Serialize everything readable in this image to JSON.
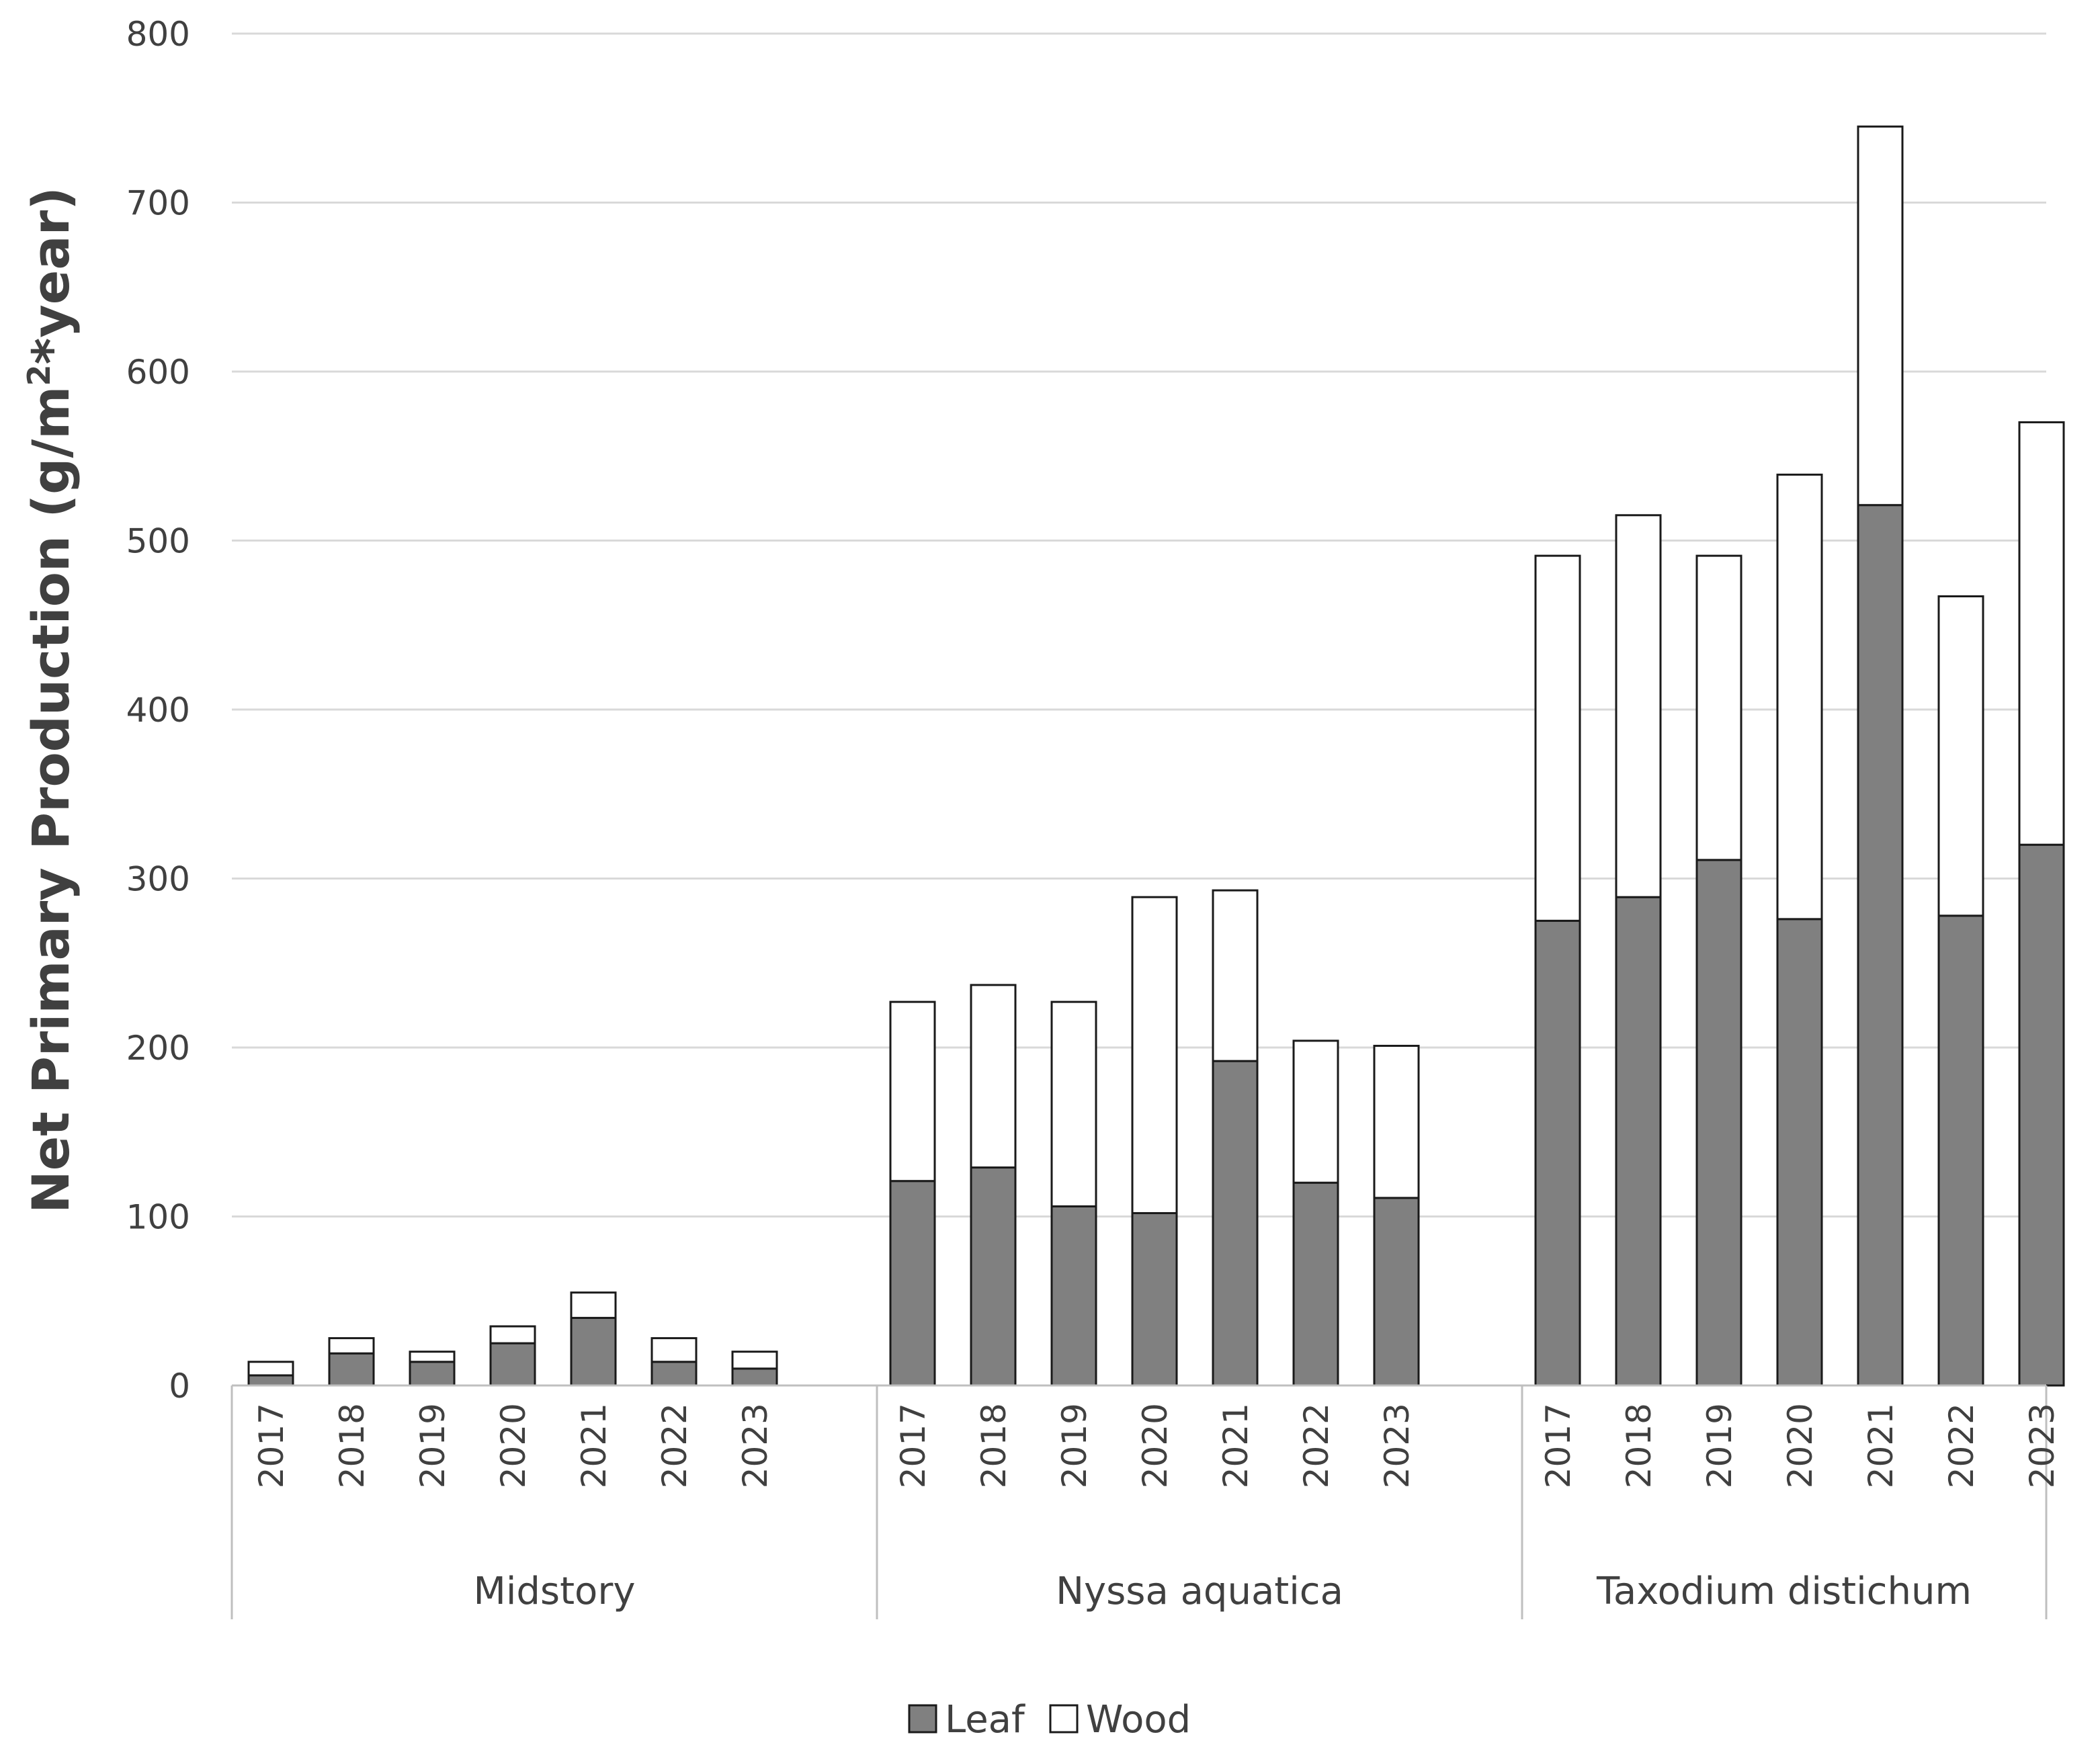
{
  "chart_data": {
    "type": "bar",
    "stacked": true,
    "title": "",
    "ylabel": "Net Primary Production (g/m2*year)",
    "ylabel_main": "Net Primary Production (g/m",
    "ylabel_sup": "2",
    "ylabel_tail": "*year)",
    "ylim": [
      0,
      800
    ],
    "yticks": [
      0,
      100,
      200,
      300,
      400,
      500,
      600,
      700,
      800
    ],
    "grid": true,
    "legend_position": "bottom-center",
    "groups": [
      {
        "name": "Midstory",
        "categories": [
          "2017",
          "2018",
          "2019",
          "2020",
          "2021",
          "2022",
          "2023"
        ],
        "series": [
          {
            "name": "Leaf",
            "values": [
              6,
              19,
              14,
              25,
              40,
              14,
              10
            ]
          },
          {
            "name": "Wood",
            "values": [
              8,
              9,
              6,
              10,
              15,
              14,
              10
            ]
          }
        ]
      },
      {
        "name": "Nyssa aquatica",
        "categories": [
          "2017",
          "2018",
          "2019",
          "2020",
          "2021",
          "2022",
          "2023"
        ],
        "series": [
          {
            "name": "Leaf",
            "values": [
              121,
              129,
              106,
              102,
              192,
              120,
              111
            ]
          },
          {
            "name": "Wood",
            "values": [
              106,
              108,
              121,
              187,
              101,
              84,
              90
            ]
          }
        ]
      },
      {
        "name": "Taxodium distichum",
        "categories": [
          "2017",
          "2018",
          "2019",
          "2020",
          "2021",
          "2022",
          "2023"
        ],
        "series": [
          {
            "name": "Leaf",
            "values": [
              275,
              289,
              311,
              276,
              521,
              278,
              320
            ]
          },
          {
            "name": "Wood",
            "values": [
              216,
              226,
              180,
              263,
              224,
              189,
              250
            ]
          }
        ]
      }
    ],
    "legend": [
      {
        "name": "Leaf",
        "color": "#808080"
      },
      {
        "name": "Wood",
        "color": "#ffffff"
      }
    ],
    "colors": {
      "leaf": "#808080",
      "wood": "#ffffff",
      "bar_border": "#1a1a1a"
    }
  }
}
